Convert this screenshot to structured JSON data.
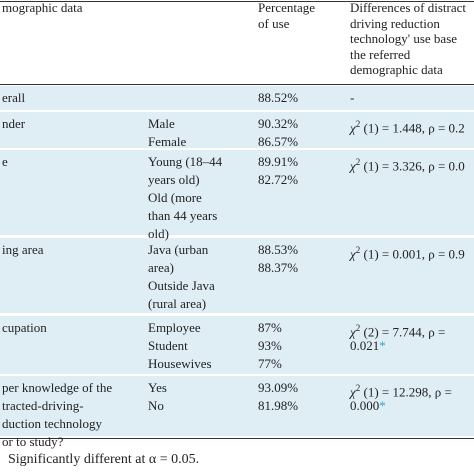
{
  "table": {
    "header": [
      [
        "mographic data"
      ],
      [],
      [
        "Percentage",
        "of use"
      ],
      [
        "Differences of distract",
        "driving reduction",
        "technology' use base",
        "the referred",
        "demographic data"
      ]
    ],
    "rows": [
      [
        [
          "erall"
        ],
        [],
        [
          "88.52%"
        ],
        [
          "-"
        ]
      ],
      [
        [
          "nder"
        ],
        [
          "Male",
          "Female"
        ],
        [
          "90.32%",
          "86.57%"
        ],
        [
          {
            "pre": "χ",
            "sup": "2",
            "post": " (1) = 1.448, ρ = 0.2"
          }
        ]
      ],
      [
        [
          "e"
        ],
        [
          "Young (18–44",
          "years old)",
          "Old (more",
          "than 44 years",
          "old)"
        ],
        [
          "89.91%",
          "82.72%"
        ],
        [
          {
            "pre": "χ",
            "sup": "2",
            "post": " (1) = 3.326, ρ = 0.0"
          }
        ]
      ],
      [
        [
          "ing area"
        ],
        [
          "Java (urban",
          "area)",
          "Outside Java",
          "(rural area)"
        ],
        [
          "88.53%",
          "88.37%"
        ],
        [
          {
            "pre": "χ",
            "sup": "2",
            "post": " (1) = 0.001, ρ = 0.9"
          }
        ]
      ],
      [
        [
          "cupation"
        ],
        [
          "Employee",
          "Student",
          "Housewives"
        ],
        [
          "87%",
          "93%",
          "77%"
        ],
        [
          {
            "pre": "χ",
            "sup": "2",
            "post": " (2) = 7.744, ρ ="
          },
          {
            "text": "0.021",
            "note": "*"
          }
        ]
      ],
      [
        [
          "per knowledge of the",
          "tracted-driving-",
          "duction technology",
          "or to study?"
        ],
        [
          "Yes",
          "No"
        ],
        [
          "93.09%",
          "81.98%"
        ],
        [
          {
            "pre": "χ",
            "sup": "2",
            "post": " (1) = 12.298, ρ ="
          },
          {
            "text": "0.000",
            "note": "*"
          }
        ]
      ]
    ],
    "footnote": "Significantly different at α = 0.05."
  }
}
